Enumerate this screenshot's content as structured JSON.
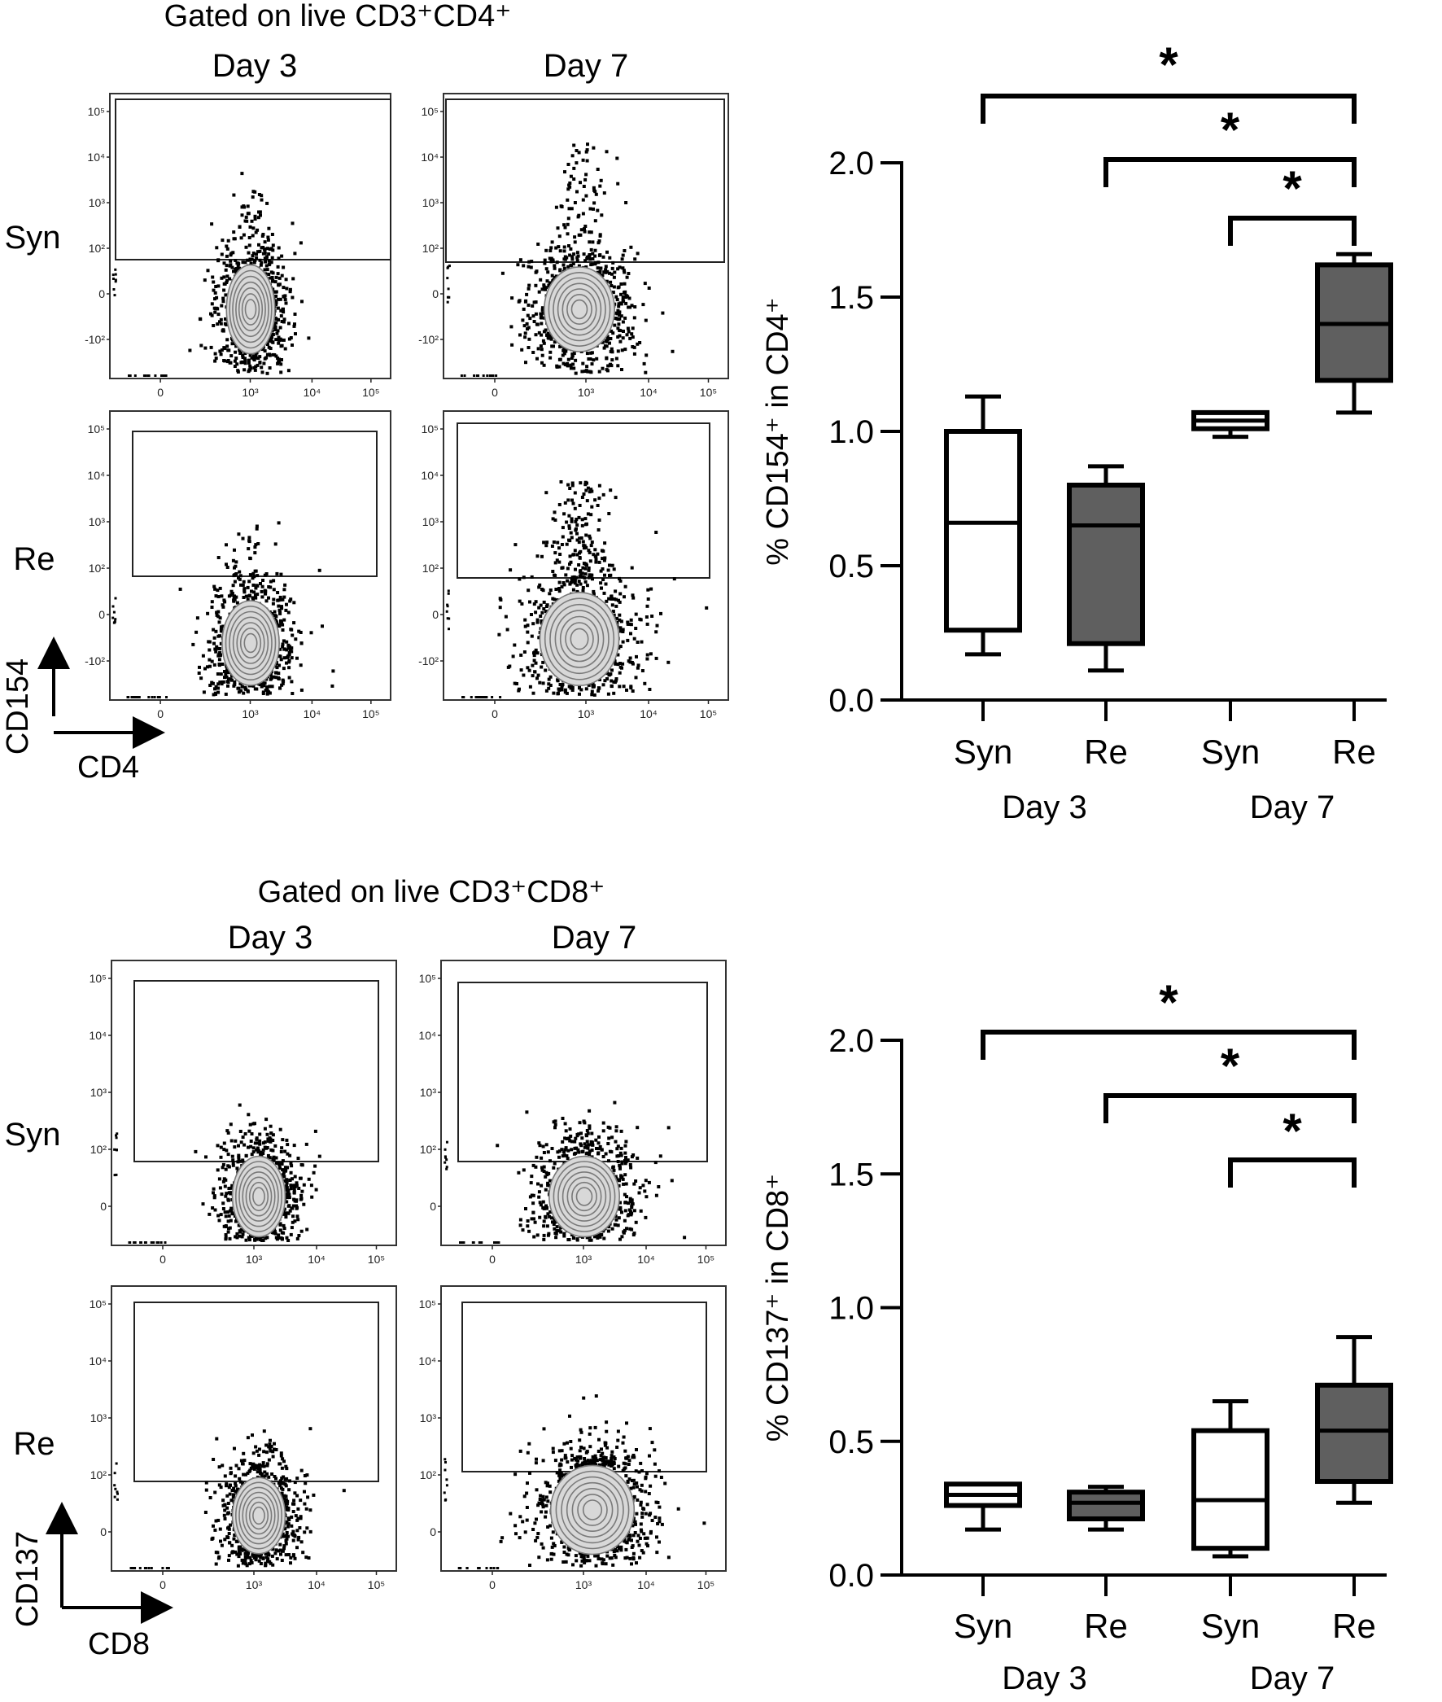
{
  "flow_panels": [
    {
      "id": "cd4",
      "title": "Gated on live CD3⁺CD4⁺",
      "col_labels": [
        "Day 3",
        "Day 7"
      ],
      "row_labels": [
        "Syn",
        "Re"
      ],
      "y_axis": "CD154",
      "x_axis": "CD4",
      "y_ticks": [
        "10⁵",
        "10⁴",
        "10³",
        "10²",
        "0",
        "-10²"
      ],
      "x_ticks": [
        "0",
        "10³",
        "10⁴",
        "10⁵"
      ]
    },
    {
      "id": "cd8",
      "title": "Gated on live CD3⁺CD8⁺",
      "col_labels": [
        "Day 3",
        "Day 7"
      ],
      "row_labels": [
        "Syn",
        "Re"
      ],
      "y_axis": "CD137",
      "x_axis": "CD8",
      "y_ticks": [
        "10⁵",
        "10⁴",
        "10³",
        "10²",
        "0"
      ],
      "x_ticks": [
        "0",
        "10³",
        "10⁴",
        "10⁵"
      ]
    }
  ],
  "chart_data": [
    {
      "type": "box",
      "ylabel": "% CD154⁺ in CD4⁺",
      "ylim": [
        0,
        2.0
      ],
      "yticks": [
        "0.0",
        "0.5",
        "1.0",
        "1.5",
        "2.0"
      ],
      "categories": [
        "Syn",
        "Re",
        "Syn",
        "Re"
      ],
      "groups": [
        "Day 3",
        "Day 7"
      ],
      "fill_colors": [
        "#ffffff",
        "#5f5f5f",
        "#ffffff",
        "#5f5f5f"
      ],
      "boxes": [
        {
          "min": 0.17,
          "q1": 0.26,
          "median": 0.66,
          "q3": 1.0,
          "max": 1.13
        },
        {
          "min": 0.11,
          "q1": 0.21,
          "median": 0.65,
          "q3": 0.8,
          "max": 0.87
        },
        {
          "min": 0.98,
          "q1": 1.01,
          "median": 1.04,
          "q3": 1.07,
          "max": 1.07
        },
        {
          "min": 1.07,
          "q1": 1.19,
          "median": 1.4,
          "q3": 1.62,
          "max": 1.66
        }
      ],
      "significance": [
        {
          "from": 0,
          "to": 3,
          "label": "*"
        },
        {
          "from": 1,
          "to": 3,
          "label": "*"
        },
        {
          "from": 2,
          "to": 3,
          "label": "*"
        }
      ]
    },
    {
      "type": "box",
      "ylabel": "% CD137⁺ in CD8⁺",
      "ylim": [
        0,
        2.0
      ],
      "yticks": [
        "0.0",
        "0.5",
        "1.0",
        "1.5",
        "2.0"
      ],
      "categories": [
        "Syn",
        "Re",
        "Syn",
        "Re"
      ],
      "groups": [
        "Day 3",
        "Day 7"
      ],
      "fill_colors": [
        "#ffffff",
        "#5f5f5f",
        "#ffffff",
        "#5f5f5f"
      ],
      "boxes": [
        {
          "min": 0.17,
          "q1": 0.26,
          "median": 0.3,
          "q3": 0.34,
          "max": 0.34
        },
        {
          "min": 0.17,
          "q1": 0.21,
          "median": 0.27,
          "q3": 0.31,
          "max": 0.33
        },
        {
          "min": 0.07,
          "q1": 0.1,
          "median": 0.28,
          "q3": 0.54,
          "max": 0.65
        },
        {
          "min": 0.27,
          "q1": 0.35,
          "median": 0.54,
          "q3": 0.71,
          "max": 0.89
        }
      ],
      "significance": [
        {
          "from": 0,
          "to": 3,
          "label": "*"
        },
        {
          "from": 1,
          "to": 3,
          "label": "*"
        },
        {
          "from": 2,
          "to": 3,
          "label": "*"
        }
      ]
    }
  ]
}
